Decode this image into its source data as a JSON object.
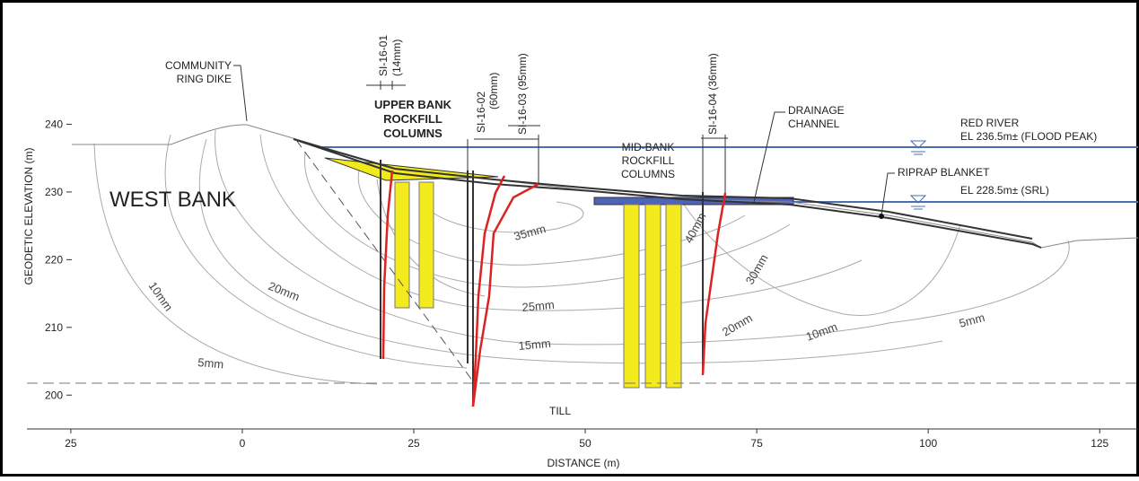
{
  "axes": {
    "x_label": "DISTANCE (m)",
    "y_label": "GEODETIC ELEVATION (m)",
    "xlim": [
      -31.4,
      130.6
    ],
    "ylim": [
      195,
      255.7
    ],
    "xticks": [
      {
        "value": -25,
        "label": "25"
      },
      0,
      25,
      50,
      75,
      100,
      125
    ],
    "yticks": [
      200,
      210,
      220,
      230,
      240
    ]
  },
  "labels": {
    "dike": [
      "COMMUNITY",
      "RING DIKE"
    ],
    "west_bank": "WEST BANK",
    "upper_columns": [
      "UPPER BANK",
      "ROCKFILL",
      "COLUMNS"
    ],
    "mid_columns": [
      "MID-BANK",
      "ROCKFILL",
      "COLUMNS"
    ],
    "drainage": [
      "DRAINAGE",
      "CHANNEL"
    ],
    "river": "RED RIVER",
    "flood_peak": "EL 236.5m± (FLOOD PEAK)",
    "riprap": "RIPRAP BLANKET",
    "srl": "EL 228.5m± (SRL)",
    "till": "TILL"
  },
  "instruments": [
    "SI-16-01",
    "(14mm)",
    "SI-16-02",
    "(60mm)",
    "SI-16-03 (95mm)",
    "SI-16-04 (36mm)"
  ],
  "contours": [
    "10mm",
    "5mm",
    "20mm",
    "35mm",
    "25mm",
    "15mm",
    "40mm",
    "30mm",
    "20mm",
    "10mm",
    "5mm"
  ]
}
